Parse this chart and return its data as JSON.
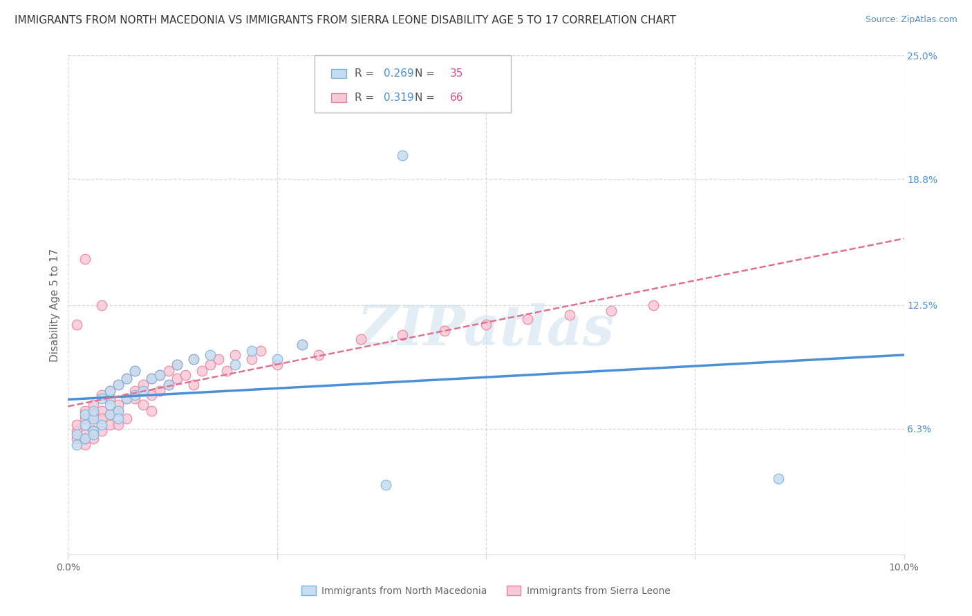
{
  "title": "IMMIGRANTS FROM NORTH MACEDONIA VS IMMIGRANTS FROM SIERRA LEONE DISABILITY AGE 5 TO 17 CORRELATION CHART",
  "source": "Source: ZipAtlas.com",
  "ylabel_label": "Disability Age 5 to 17",
  "xlim": [
    0.0,
    0.1
  ],
  "ylim": [
    0.0,
    0.25
  ],
  "xtick_positions": [
    0.0,
    0.025,
    0.05,
    0.075,
    0.1
  ],
  "xtick_labels": [
    "0.0%",
    "",
    "",
    "",
    "10.0%"
  ],
  "ytick_positions": [
    0.063,
    0.125,
    0.188,
    0.25
  ],
  "ytick_labels": [
    "6.3%",
    "12.5%",
    "18.8%",
    "25.0%"
  ],
  "series1_name": "Immigrants from North Macedonia",
  "series1_fill": "#c6dcf0",
  "series1_edge": "#7ab3d9",
  "series1_line": "#4a90d9",
  "series1_R": 0.269,
  "series1_N": 35,
  "series1_x": [
    0.001,
    0.001,
    0.002,
    0.002,
    0.002,
    0.003,
    0.003,
    0.003,
    0.003,
    0.004,
    0.004,
    0.005,
    0.005,
    0.005,
    0.006,
    0.006,
    0.006,
    0.007,
    0.007,
    0.008,
    0.008,
    0.009,
    0.01,
    0.011,
    0.012,
    0.013,
    0.015,
    0.017,
    0.02,
    0.022,
    0.025,
    0.028,
    0.038,
    0.085,
    0.04
  ],
  "series1_y": [
    0.06,
    0.055,
    0.065,
    0.07,
    0.058,
    0.068,
    0.062,
    0.072,
    0.06,
    0.078,
    0.065,
    0.082,
    0.07,
    0.075,
    0.085,
    0.072,
    0.068,
    0.088,
    0.078,
    0.092,
    0.08,
    0.082,
    0.088,
    0.09,
    0.085,
    0.095,
    0.098,
    0.1,
    0.095,
    0.102,
    0.098,
    0.105,
    0.035,
    0.038,
    0.2
  ],
  "series2_name": "Immigrants from Sierra Leone",
  "series2_fill": "#f9c8d5",
  "series2_edge": "#e8809a",
  "series2_line": "#e07090",
  "series2_R": 0.319,
  "series2_N": 66,
  "series2_x": [
    0.001,
    0.001,
    0.001,
    0.002,
    0.002,
    0.002,
    0.002,
    0.002,
    0.003,
    0.003,
    0.003,
    0.003,
    0.003,
    0.004,
    0.004,
    0.004,
    0.004,
    0.005,
    0.005,
    0.005,
    0.005,
    0.006,
    0.006,
    0.006,
    0.006,
    0.007,
    0.007,
    0.007,
    0.008,
    0.008,
    0.008,
    0.009,
    0.009,
    0.01,
    0.01,
    0.01,
    0.011,
    0.011,
    0.012,
    0.012,
    0.013,
    0.013,
    0.014,
    0.015,
    0.015,
    0.016,
    0.017,
    0.018,
    0.019,
    0.02,
    0.022,
    0.023,
    0.025,
    0.028,
    0.03,
    0.035,
    0.04,
    0.045,
    0.05,
    0.055,
    0.06,
    0.065,
    0.07,
    0.001,
    0.002,
    0.004
  ],
  "series2_y": [
    0.058,
    0.062,
    0.065,
    0.06,
    0.055,
    0.068,
    0.072,
    0.058,
    0.065,
    0.07,
    0.062,
    0.075,
    0.058,
    0.072,
    0.068,
    0.08,
    0.062,
    0.078,
    0.065,
    0.082,
    0.07,
    0.085,
    0.072,
    0.075,
    0.065,
    0.088,
    0.078,
    0.068,
    0.082,
    0.078,
    0.092,
    0.085,
    0.075,
    0.088,
    0.08,
    0.072,
    0.09,
    0.082,
    0.092,
    0.085,
    0.095,
    0.088,
    0.09,
    0.098,
    0.085,
    0.092,
    0.095,
    0.098,
    0.092,
    0.1,
    0.098,
    0.102,
    0.095,
    0.105,
    0.1,
    0.108,
    0.11,
    0.112,
    0.115,
    0.118,
    0.12,
    0.122,
    0.125,
    0.115,
    0.148,
    0.125
  ],
  "grid_color": "#d8d8d8",
  "watermark": "ZIPatlas",
  "bg_color": "#ffffff",
  "title_fontsize": 11,
  "source_fontsize": 9,
  "axis_color": "#4a90d9",
  "label_color": "#666666"
}
